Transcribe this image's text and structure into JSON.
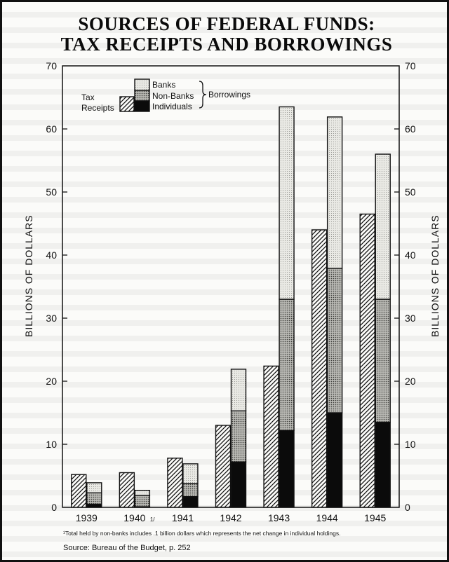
{
  "title_line1": "SOURCES OF FEDERAL FUNDS:",
  "title_line2": "TAX RECEIPTS AND BORROWINGS",
  "chart_data": {
    "type": "bar",
    "stacked_borrowings": true,
    "title": "SOURCES OF FEDERAL FUNDS: TAX RECEIPTS AND BORROWINGS",
    "xlabel": "",
    "ylabel": "BILLIONS OF DOLLARS",
    "ylim": [
      0,
      70
    ],
    "yticks": [
      0,
      10,
      20,
      30,
      40,
      50,
      60,
      70
    ],
    "categories": [
      "1939",
      "1940",
      "1941",
      "1942",
      "1943",
      "1944",
      "1945"
    ],
    "category_marks": [
      "",
      "1/",
      "",
      "",
      "",
      "",
      ""
    ],
    "tax_receipts": {
      "name": "Tax Receipts",
      "values": [
        5.2,
        5.5,
        7.8,
        13.0,
        22.4,
        44.0,
        46.5
      ]
    },
    "borrowings_label": "Borrowings",
    "series": [
      {
        "name": "Individuals",
        "values": [
          0.5,
          0.1,
          1.7,
          7.2,
          12.2,
          15.0,
          13.5
        ]
      },
      {
        "name": "Non-Banks",
        "values": [
          1.8,
          1.8,
          2.1,
          8.1,
          20.8,
          22.9,
          19.5
        ]
      },
      {
        "name": "Banks",
        "values": [
          1.6,
          0.8,
          3.1,
          6.6,
          30.5,
          24.0,
          23.0
        ]
      }
    ],
    "legend_position": "top-left",
    "grid": false,
    "footnote": "¹Total held by non-banks includes .1 billion dollars which represents the net change in individual holdings.",
    "source": "Source: Bureau of the Budget, p. 252"
  },
  "legend": {
    "banks": "Banks",
    "nonbanks": "Non-Banks",
    "individuals": "Individuals",
    "tax_line1": "Tax",
    "tax_line2": "Receipts",
    "borrowings": "Borrowings"
  }
}
